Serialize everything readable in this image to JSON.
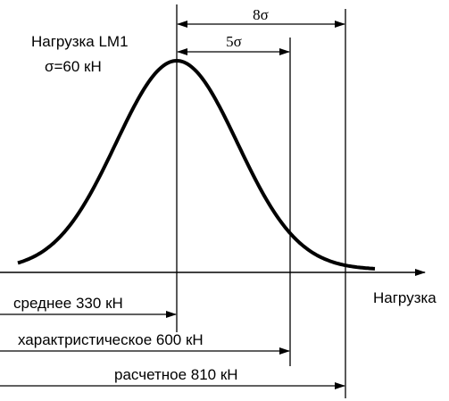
{
  "title": "Нагрузка LM1",
  "sigma": "σ=60 кН",
  "axis_label": "Нагрузка",
  "spans": [
    "8σ",
    "5σ"
  ],
  "levels": [
    "среднее 330 кН",
    "характристическое 600 кН",
    "расчетное 810 кН"
  ]
}
